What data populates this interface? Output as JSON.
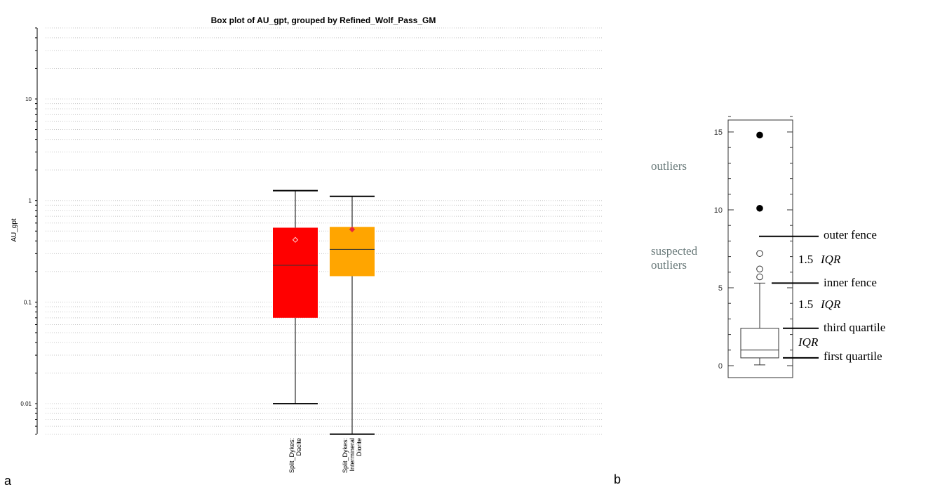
{
  "chart_data": [
    {
      "type": "box",
      "panel_label": "a",
      "title": "Box plot of AU_gpt, grouped by Refined_Wolf_Pass_GM",
      "xlabel": "",
      "ylabel": "AU_gpt",
      "yscale": "log",
      "ylim": [
        0.005,
        50
      ],
      "y_tick_labels": [
        "10",
        "1",
        "0.1",
        "0.01"
      ],
      "grid": "horizontal-dotted",
      "categories": [
        {
          "label_lines": [
            "Split_Dykes:",
            "Dacite"
          ],
          "color": "#ff0000",
          "whisker_low": 0.01,
          "q1": 0.07,
          "median": 0.23,
          "q3": 0.54,
          "whisker_high": 1.25,
          "mean": 0.41,
          "mean_marker": "hollow-diamond"
        },
        {
          "label_lines": [
            "Split_Dykes:",
            "Intermineral",
            "Diorite"
          ],
          "color": "#ffa500",
          "whisker_low": 0.005,
          "q1": 0.18,
          "median": 0.33,
          "q3": 0.55,
          "whisker_high": 1.1,
          "mean": 0.52,
          "mean_marker": "red-diamond"
        }
      ]
    },
    {
      "type": "box",
      "panel_label": "b",
      "title": "",
      "xlabel": "",
      "ylabel": "",
      "yscale": "linear",
      "ylim": [
        -1,
        16
      ],
      "y_ticks": [
        0,
        5,
        10,
        15
      ],
      "box": {
        "whisker_low": 0.05,
        "q1": 0.5,
        "median": 1.0,
        "q3": 2.4,
        "whisker_high": 5.3,
        "suspected_outliers": [
          5.7,
          6.2,
          7.2
        ],
        "outliers": [
          10.1,
          14.8
        ],
        "inner_fence": 5.3,
        "outer fence": 8.3
      },
      "annotations": {
        "outliers": "outliers",
        "suspected_line1": "suspected",
        "suspected_line2": "outliers",
        "outer_fence": "outer fence",
        "inner_fence": "inner fence",
        "third_quartile": "third quartile",
        "first_quartile": "first quartile",
        "iqr_upper": "1.5",
        "iqr_middle": "1.5",
        "iqr_symbol": "IQR"
      }
    }
  ]
}
